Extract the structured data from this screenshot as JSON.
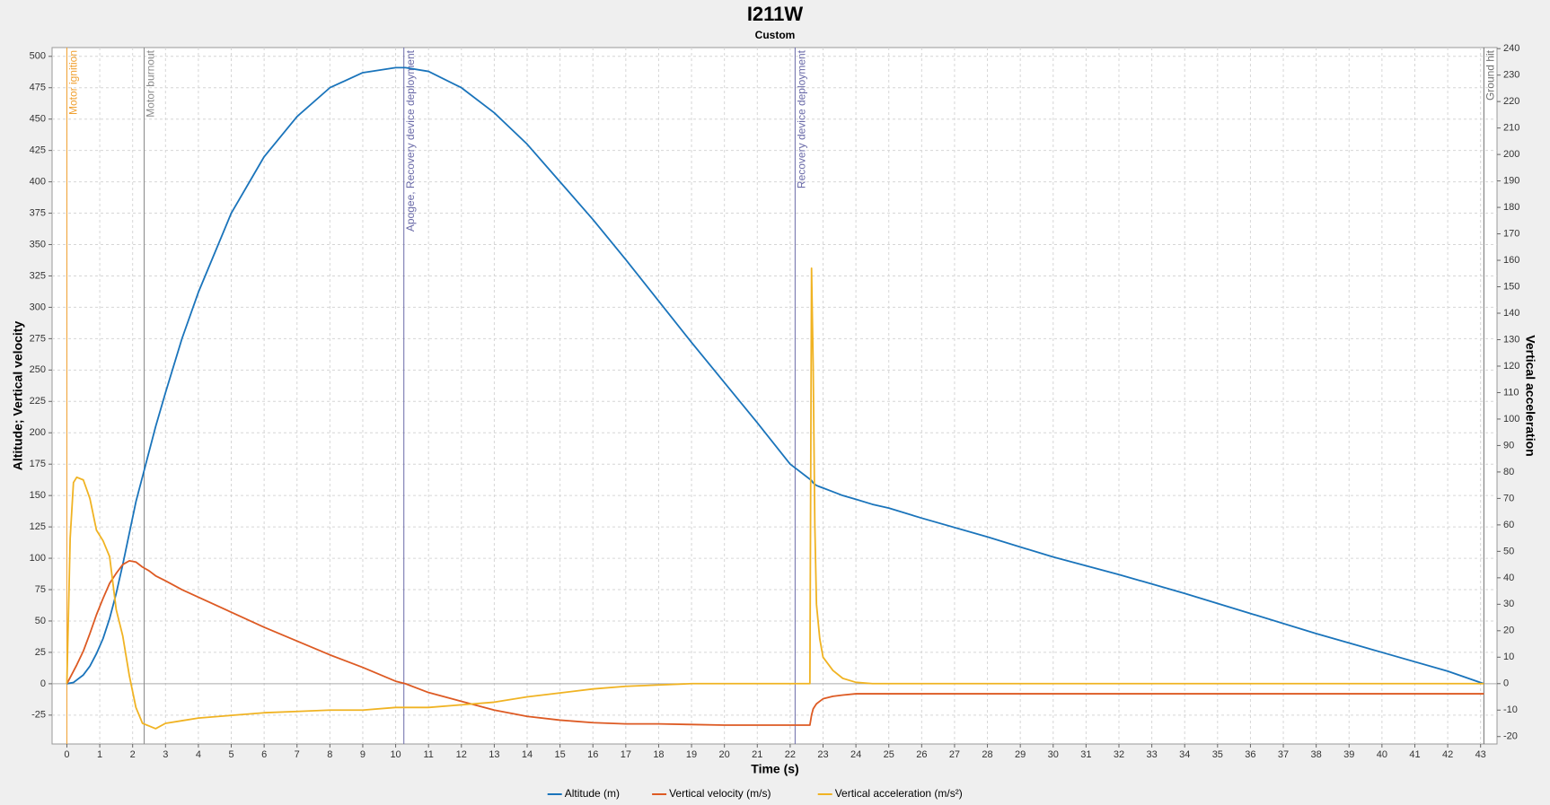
{
  "chart_data": {
    "type": "line",
    "title": "I211W",
    "subtitle": "Custom",
    "x_label": "Time (s)",
    "y_label": "Altitude; Vertical velocity",
    "y2_label": "Vertical acceleration",
    "x": [
      0,
      0.1,
      0.2,
      0.3,
      0.5,
      0.7,
      0.9,
      1.1,
      1.3,
      1.5,
      1.7,
      1.9,
      2.1,
      2.3,
      2.5,
      2.7,
      3,
      3.5,
      4,
      5,
      6,
      7,
      8,
      9,
      10,
      10.3,
      11,
      12,
      13,
      14,
      15,
      16,
      17,
      18,
      19,
      20,
      21,
      22,
      22.6,
      22.65,
      22.7,
      22.75,
      22.8,
      22.9,
      23,
      23.3,
      23.6,
      24,
      24.5,
      25,
      26,
      28,
      30,
      32,
      34,
      36,
      38,
      40,
      42,
      43.1
    ],
    "series": [
      {
        "name": "Altitude (m)",
        "color": "#1a74bb",
        "axis": "y",
        "values": [
          0,
          0.5,
          1,
          3,
          7,
          14,
          24,
          36,
          52,
          72,
          95,
          120,
          145,
          165,
          185,
          205,
          232,
          275,
          312,
          375,
          420,
          452,
          475,
          487,
          491,
          491,
          488,
          475,
          455,
          430,
          400,
          370,
          338,
          305,
          272,
          240,
          208,
          175,
          163,
          162,
          160,
          159,
          158,
          157,
          156,
          153,
          150,
          147,
          143,
          140,
          132,
          117,
          101,
          87,
          72,
          56,
          40,
          25,
          10,
          0
        ]
      },
      {
        "name": "Vertical velocity (m/s)",
        "color": "#dd5a23",
        "axis": "y",
        "values": [
          0,
          5,
          10,
          15,
          26,
          40,
          55,
          68,
          80,
          88,
          95,
          98,
          97,
          93,
          90,
          86,
          82,
          75,
          69,
          57,
          45,
          34,
          23,
          13,
          2,
          0,
          -7,
          -14,
          -21,
          -26,
          -29,
          -31,
          -32,
          -32,
          -32.5,
          -33,
          -33,
          -33,
          -33,
          -25,
          -20,
          -18,
          -16,
          -14,
          -12,
          -10,
          -9,
          -8,
          -8,
          -8,
          -8,
          -8,
          -8,
          -8,
          -8,
          -8,
          -8,
          -8,
          -8,
          -8
        ]
      },
      {
        "name": "Vertical acceleration (m/s²)",
        "color": "#f0b323",
        "axis": "y2",
        "values": [
          0,
          55,
          76,
          78,
          77,
          70,
          58,
          54,
          48,
          28,
          18,
          3,
          -9,
          -15,
          -16,
          -17,
          -15,
          -14,
          -13,
          -12,
          -11,
          -10.5,
          -10,
          -10,
          -9,
          -9,
          -9,
          -8,
          -7,
          -5,
          -3.5,
          -2,
          -1,
          -0.5,
          0,
          0,
          0,
          0,
          0,
          157,
          120,
          60,
          30,
          17,
          10,
          5,
          2,
          0.5,
          0,
          0,
          0,
          0,
          0,
          0,
          0,
          0,
          0,
          0,
          0,
          0
        ]
      }
    ],
    "events": [
      {
        "x": 0,
        "label": "Motor ignition",
        "color": "#f0a030"
      },
      {
        "x": 2.35,
        "label": "Motor burnout",
        "color": "#8a8a8a"
      },
      {
        "x": 10.25,
        "label": "Apogee, Recovery device deployment",
        "color": "#6a6aa8"
      },
      {
        "x": 22.15,
        "label": "Recovery device deployment",
        "color": "#6a6aa8"
      },
      {
        "x": 43.1,
        "label": "Ground hit",
        "color": "#707070"
      }
    ],
    "xlim": [
      -0.45,
      43.5
    ],
    "ylim": [
      -48,
      507
    ],
    "y2lim": [
      -22.8,
      240.4
    ],
    "xticks": [
      0,
      1,
      2,
      3,
      4,
      5,
      6,
      7,
      8,
      9,
      10,
      11,
      12,
      13,
      14,
      15,
      16,
      17,
      18,
      19,
      20,
      21,
      22,
      23,
      24,
      25,
      26,
      27,
      28,
      29,
      30,
      31,
      32,
      33,
      34,
      35,
      36,
      37,
      38,
      39,
      40,
      41,
      42,
      43
    ],
    "yticks": [
      -25,
      0,
      25,
      50,
      75,
      100,
      125,
      150,
      175,
      200,
      225,
      250,
      275,
      300,
      325,
      350,
      375,
      400,
      425,
      450,
      475,
      500
    ],
    "y2ticks": [
      -20,
      -10,
      0,
      10,
      20,
      30,
      40,
      50,
      60,
      70,
      80,
      90,
      100,
      110,
      120,
      130,
      140,
      150,
      160,
      170,
      180,
      190,
      200,
      210,
      220,
      230,
      240
    ],
    "grid": true,
    "legend": "bottom"
  }
}
